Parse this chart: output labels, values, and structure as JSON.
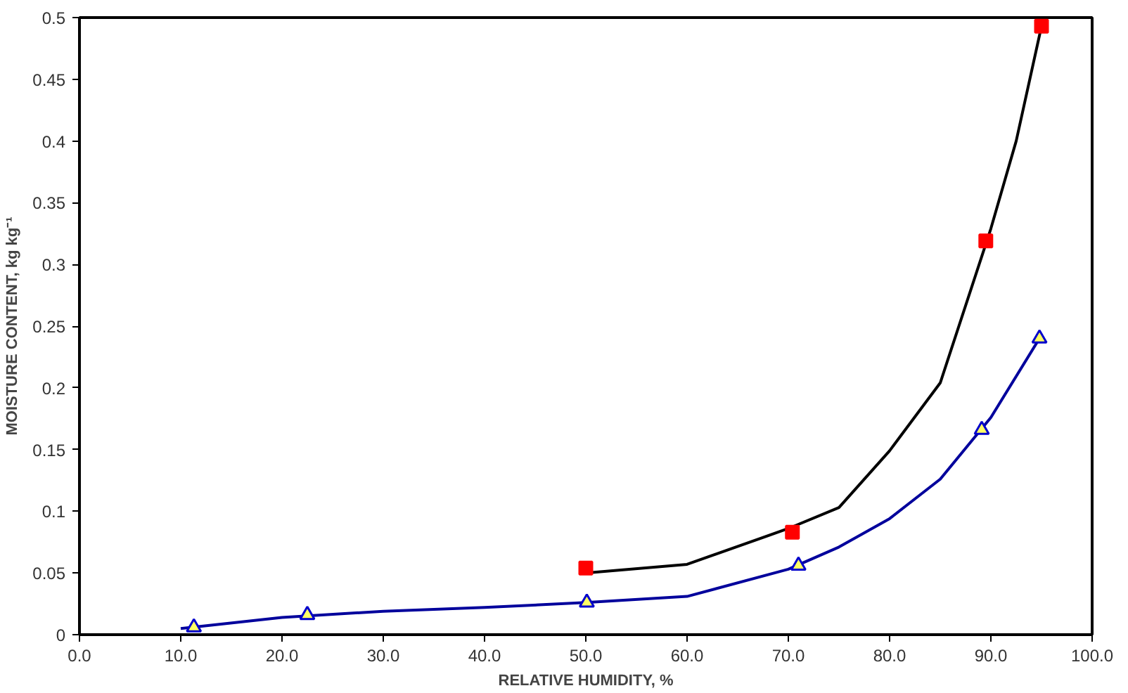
{
  "chart_data": {
    "type": "scatter",
    "xlabel": "RELATIVE HUMIDITY, %",
    "ylabel": "MOISTURE CONTENT, kg kg⁻¹",
    "xlim": [
      0,
      100
    ],
    "ylim": [
      0,
      0.5
    ],
    "xticks": [
      {
        "value": 0,
        "label": "0.0"
      },
      {
        "value": 10,
        "label": "10.0"
      },
      {
        "value": 20,
        "label": "20.0"
      },
      {
        "value": 30,
        "label": "30.0"
      },
      {
        "value": 40,
        "label": "40.0"
      },
      {
        "value": 50,
        "label": "50.0"
      },
      {
        "value": 60,
        "label": "60.0"
      },
      {
        "value": 70,
        "label": "70.0"
      },
      {
        "value": 80,
        "label": "80.0"
      },
      {
        "value": 90,
        "label": "90.0"
      },
      {
        "value": 100,
        "label": "100.0"
      }
    ],
    "yticks": [
      0,
      0.05,
      0.1,
      0.15,
      0.2,
      0.25,
      0.3,
      0.35,
      0.4,
      0.45,
      0.5
    ],
    "grid": false,
    "series": [
      {
        "type": "line",
        "marker": "none",
        "color": "#000000",
        "x": [
          50,
          60,
          70,
          75,
          80,
          85,
          90,
          92.5,
          95
        ],
        "values": [
          0.05,
          0.057,
          0.086,
          0.103,
          0.149,
          0.204,
          0.329,
          0.4,
          0.493
        ]
      },
      {
        "type": "line",
        "marker": "none",
        "color": "#00009c",
        "x": [
          10,
          20,
          30,
          40,
          50,
          60,
          70,
          75,
          80,
          85,
          90,
          94.8
        ],
        "values": [
          0.005,
          0.014,
          0.019,
          0.022,
          0.026,
          0.031,
          0.053,
          0.071,
          0.094,
          0.126,
          0.176,
          0.24
        ]
      },
      {
        "marker": "square",
        "color": "#ff0000",
        "x": [
          50.0,
          70.4,
          89.5,
          95.0
        ],
        "values": [
          0.054,
          0.083,
          0.319,
          0.493
        ]
      },
      {
        "marker": "triangle",
        "color": "#0000cc",
        "x": [
          11.3,
          22.5,
          50.1,
          71.0,
          89.1,
          94.8
        ],
        "values": [
          0.006,
          0.016,
          0.026,
          0.056,
          0.166,
          0.24
        ]
      }
    ]
  }
}
